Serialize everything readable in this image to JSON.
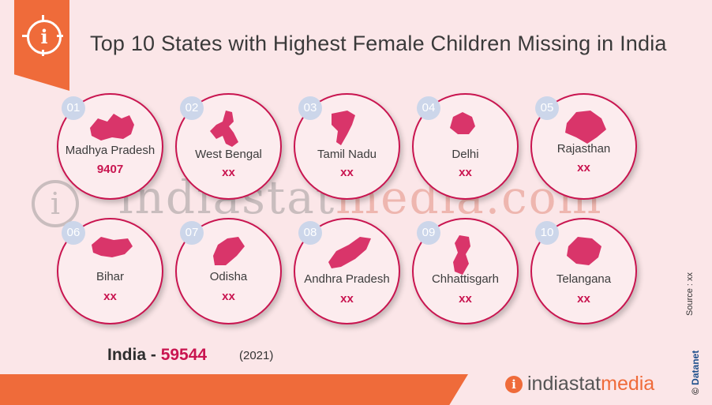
{
  "title": "Top 10 States with Highest Female Children Missing in India",
  "watermark": {
    "part1": "indiastat",
    "part2": "media.com",
    "logo": "i"
  },
  "colors": {
    "accent": "#ef6b3a",
    "value": "#c91550",
    "map": "#d9356a",
    "rank": "#ccd6ea"
  },
  "chart_data": {
    "type": "table",
    "categories": [
      "Madhya Pradesh",
      "West Bengal",
      "Tamil Nadu",
      "Delhi",
      "Rajasthan",
      "Bihar",
      "Odisha",
      "Andhra Pradesh",
      "Chhattisgarh",
      "Telangana"
    ],
    "ranks": [
      "01",
      "02",
      "03",
      "04",
      "05",
      "06",
      "07",
      "08",
      "09",
      "10"
    ],
    "values": [
      "9407",
      "xx",
      "xx",
      "xx",
      "xx",
      "xx",
      "xx",
      "xx",
      "xx",
      "xx"
    ],
    "total": {
      "label": "India",
      "separator": "-",
      "value": "59544",
      "year": "(2021)"
    }
  },
  "source": "Source : xx",
  "copyright": {
    "symbol": "©",
    "name": "Datanet"
  },
  "brand": {
    "logo": "i",
    "part1": "indiastat",
    "part2": "media"
  }
}
